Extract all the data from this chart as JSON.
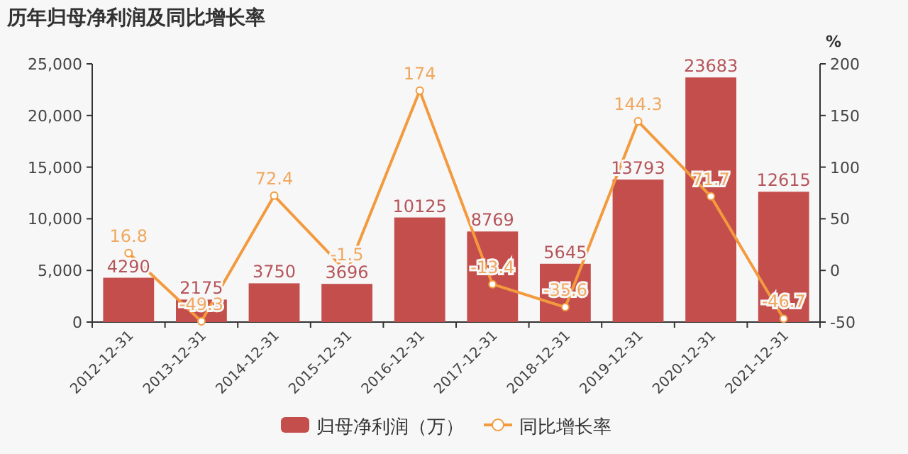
{
  "chart_data": {
    "type": "bar",
    "title": "历年归母净利润及同比增长率",
    "y2label": "%",
    "categories": [
      "2012-12-31",
      "2013-12-31",
      "2014-12-31",
      "2015-12-31",
      "2016-12-31",
      "2017-12-31",
      "2018-12-31",
      "2019-12-31",
      "2020-12-31",
      "2021-12-31"
    ],
    "series": [
      {
        "name": "归母净利润（万）",
        "color": "#c44e4c",
        "values": [
          4290,
          2175,
          3750,
          3696,
          10125,
          8769,
          5645,
          13793,
          23683,
          12615
        ]
      },
      {
        "name": "同比增长率",
        "type": "line",
        "axis": "y2",
        "color": "#f39a3e",
        "marker": "circle",
        "values": [
          16.8,
          -49.3,
          72.4,
          -1.5,
          174,
          -13.4,
          -35.6,
          144.3,
          71.7,
          -46.7
        ]
      }
    ],
    "ylim": [
      0,
      25000
    ],
    "yticks": [
      {
        "value": 0,
        "label": "0"
      },
      {
        "value": 5000,
        "label": "5,000"
      },
      {
        "value": 10000,
        "label": "10,000"
      },
      {
        "value": 15000,
        "label": "15,000"
      },
      {
        "value": 20000,
        "label": "20,000"
      },
      {
        "value": 25000,
        "label": "25,000"
      }
    ],
    "y2lim": [
      -50,
      200
    ],
    "y2ticks": [
      -50,
      0,
      50,
      100,
      150,
      200
    ],
    "data_labels": true,
    "legend": "bottom",
    "grid": false
  }
}
